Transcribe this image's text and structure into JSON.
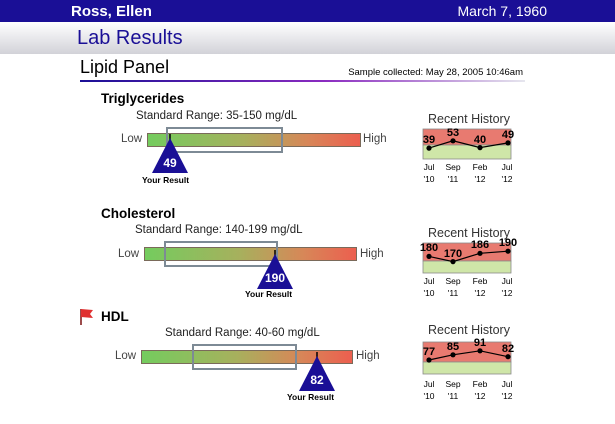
{
  "patient": {
    "name": "Ross, Ellen",
    "date": "March 7, 1960"
  },
  "page": {
    "title": "Lab Results"
  },
  "panel": {
    "title": "Lipid Panel",
    "sample": "Sample collected: May 28, 2005 10:46am"
  },
  "labels": {
    "low": "Low",
    "high": "High",
    "your_result": "Your Result",
    "recent_history": "Recent History"
  },
  "history_dates": [
    {
      "month": "Jul",
      "year": "'10"
    },
    {
      "month": "Sep",
      "year": "'11"
    },
    {
      "month": "Feb",
      "year": "'12"
    },
    {
      "month": "Jul",
      "year": "'12"
    }
  ],
  "colors": {
    "brand": "#1a0f96",
    "marker": "#1a0f96",
    "flag": "#e03030",
    "history_high": "#e87a70",
    "history_low": "#cfe6a8"
  },
  "tests": [
    {
      "name": "Triglycerides",
      "flagged": false,
      "range_label": "Standard Range: 35-150 mg/dL",
      "result": "49",
      "result_value": 49,
      "history": [
        "39",
        "53",
        "40",
        "49"
      ],
      "history_values": [
        39,
        53,
        40,
        49
      ]
    },
    {
      "name": "Cholesterol",
      "flagged": false,
      "range_label": "Standard Range: 140-199 mg/dL",
      "result": "190",
      "result_value": 190,
      "history": [
        "180",
        "170",
        "186",
        "190"
      ],
      "history_values": [
        180,
        170,
        186,
        190
      ]
    },
    {
      "name": "HDL",
      "flagged": true,
      "flag_icon": "red-flag-icon",
      "range_label": "Standard Range: 40-60 mg/dL",
      "result": "82",
      "result_value": 82,
      "history": [
        "77",
        "85",
        "91",
        "82"
      ],
      "history_values": [
        77,
        85,
        91,
        82
      ]
    }
  ]
}
